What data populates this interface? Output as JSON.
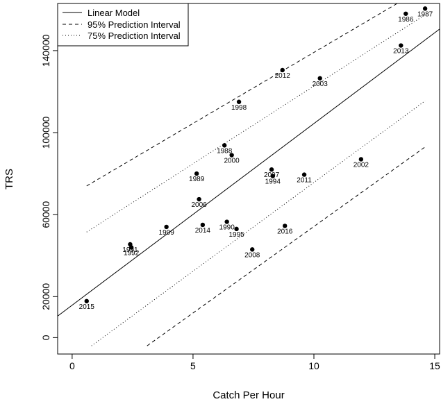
{
  "chart_data": {
    "type": "scatter",
    "title": "",
    "xlabel": "Catch Per Hour",
    "ylabel": "TRS",
    "xlim": [
      -0.6,
      15.2
    ],
    "ylim": [
      -8000,
      163000
    ],
    "xticks": [
      0,
      5,
      10,
      15
    ],
    "yticks": [
      0,
      20000,
      60000,
      100000,
      140000
    ],
    "grid": false,
    "legend_position": "top-left",
    "legend": [
      {
        "label": "Linear Model",
        "style": "solid"
      },
      {
        "label": "95% Prediction Interval",
        "style": "dashed"
      },
      {
        "label": "75% Prediction Interval",
        "style": "dotted"
      }
    ],
    "points": [
      {
        "x": 0.6,
        "y": 17800,
        "label": "2015"
      },
      {
        "x": 2.4,
        "y": 45500,
        "label": "1991"
      },
      {
        "x": 2.45,
        "y": 44000,
        "label": "1992"
      },
      {
        "x": 3.9,
        "y": 54000,
        "label": "1999"
      },
      {
        "x": 5.15,
        "y": 80000,
        "label": "1989"
      },
      {
        "x": 5.25,
        "y": 67500,
        "label": "2006"
      },
      {
        "x": 5.4,
        "y": 55000,
        "label": "2014"
      },
      {
        "x": 6.3,
        "y": 93800,
        "label": "1988"
      },
      {
        "x": 6.4,
        "y": 56500,
        "label": "1990"
      },
      {
        "x": 6.6,
        "y": 89000,
        "label": "2000"
      },
      {
        "x": 6.8,
        "y": 53000,
        "label": "1995"
      },
      {
        "x": 6.9,
        "y": 115000,
        "label": "1998"
      },
      {
        "x": 7.45,
        "y": 43000,
        "label": "2008"
      },
      {
        "x": 8.25,
        "y": 82000,
        "label": "2007"
      },
      {
        "x": 8.3,
        "y": 78800,
        "label": "1994"
      },
      {
        "x": 8.7,
        "y": 130500,
        "label": "2012"
      },
      {
        "x": 8.8,
        "y": 54500,
        "label": "2016"
      },
      {
        "x": 9.6,
        "y": 79500,
        "label": "2011"
      },
      {
        "x": 10.25,
        "y": 126500,
        "label": "2003"
      },
      {
        "x": 11.95,
        "y": 87000,
        "label": "2002"
      },
      {
        "x": 13.6,
        "y": 142500,
        "label": "2013"
      },
      {
        "x": 13.8,
        "y": 158000,
        "label": "1986"
      },
      {
        "x": 14.6,
        "y": 160500,
        "label": "1987"
      }
    ],
    "lines": [
      {
        "name": "Linear Model",
        "style": "solid",
        "x": [
          -0.6,
          15.2
        ],
        "y": [
          10500,
          150500
        ]
      },
      {
        "name": "95% Prediction Interval (upper)",
        "style": "dashed",
        "x": [
          0.6,
          14.6
        ],
        "y": [
          74000,
          171000
        ]
      },
      {
        "name": "95% Prediction Interval (lower)",
        "style": "dashed",
        "x": [
          3.1,
          14.6
        ],
        "y": [
          -4000,
          93000
        ]
      },
      {
        "name": "75% Prediction Interval (upper)",
        "style": "dotted",
        "x": [
          0.6,
          14.6
        ],
        "y": [
          51500,
          157500
        ]
      },
      {
        "name": "75% Prediction Interval (lower)",
        "style": "dotted",
        "x": [
          0.8,
          14.6
        ],
        "y": [
          -4000,
          115500
        ]
      }
    ]
  }
}
